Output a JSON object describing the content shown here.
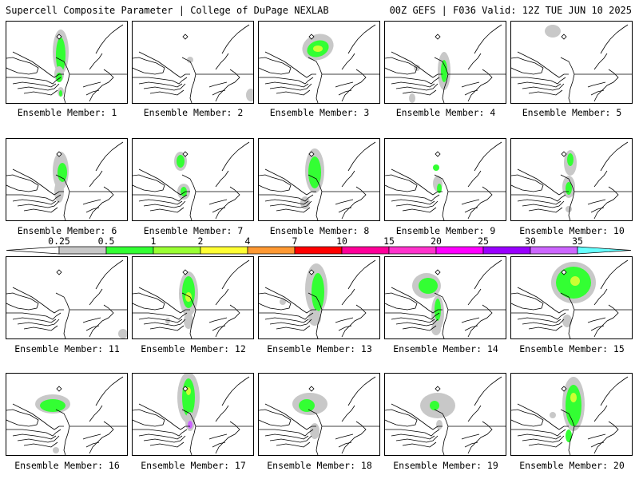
{
  "header": {
    "title_left": "Supercell Composite Parameter | College of DuPage NEXLAB",
    "title_right": "00Z GEFS | F036 Valid: 12Z TUE JUN 10 2025"
  },
  "member_label_prefix": "Ensemble Member: ",
  "members": [
    "1",
    "2",
    "3",
    "4",
    "5",
    "6",
    "7",
    "8",
    "9",
    "10",
    "11",
    "12",
    "13",
    "14",
    "15",
    "16",
    "17",
    "18",
    "19",
    "20"
  ],
  "colorbar": {
    "thresholds": [
      "0.25",
      "0.5",
      "1",
      "2",
      "4",
      "7",
      "10",
      "15",
      "20",
      "25",
      "30",
      "35"
    ],
    "colors": [
      "#ffffff",
      "#c8c8c8",
      "#33ff33",
      "#99ff33",
      "#ffff33",
      "#ff9933",
      "#ff0000",
      "#ff0099",
      "#ff33cc",
      "#ff00ff",
      "#9900ff",
      "#cc66ff",
      "#66ffff"
    ]
  },
  "legend_colors": {
    "light": "#c8c8c8",
    "green": "#33ff33",
    "yellow_green": "#ccff33"
  }
}
